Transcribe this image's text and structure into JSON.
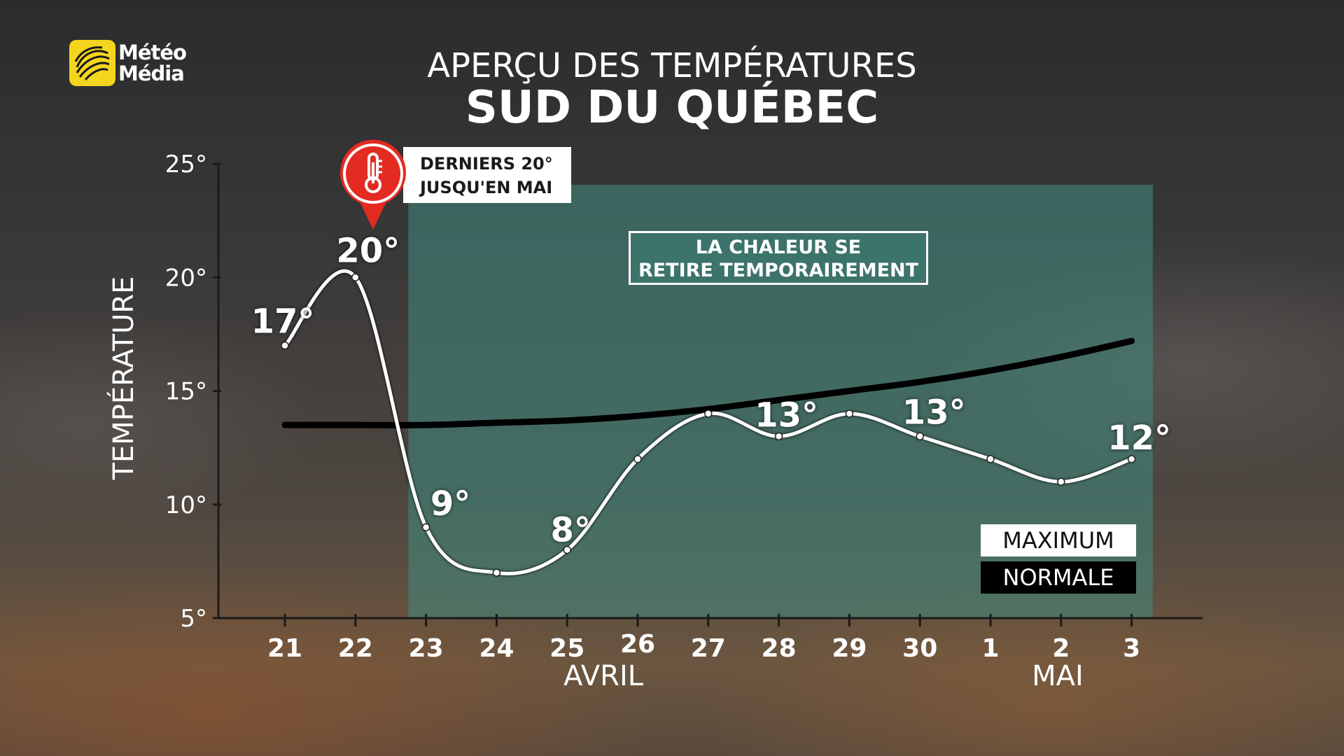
{
  "branding": {
    "logo_line1": "Météo",
    "logo_line2": "Média"
  },
  "header": {
    "title": "APERÇU DES TEMPÉRATURES",
    "subtitle": "SUD DU QUÉBEC"
  },
  "callout": {
    "line1": "DERNIERS 20°",
    "line2": "JUSQU'EN MAI"
  },
  "highlight": {
    "line1": "LA CHALEUR SE",
    "line2": "RETIRE TEMPORAIREMENT"
  },
  "legend": {
    "maximum": "MAXIMUM",
    "normale": "NORMALE"
  },
  "months": {
    "april": "AVRIL",
    "may": "MAI"
  },
  "colors": {
    "maximum_line": "#ffffff",
    "normal_line": "#000000",
    "callout_pin": "#e32b22",
    "highlight_zone": "#3f8c80",
    "logo_yellow": "#f4d51d"
  },
  "chart_data": {
    "type": "line",
    "ylabel": "TEMPÉRATURE",
    "ylim": [
      5,
      25
    ],
    "y_ticks": [
      5,
      10,
      15,
      20,
      25
    ],
    "y_tick_labels": [
      "5°",
      "10°",
      "15°",
      "20°",
      "25°"
    ],
    "categories": [
      "21",
      "22",
      "23",
      "24",
      "25",
      "26",
      "27",
      "28",
      "29",
      "30",
      "1",
      "2",
      "3"
    ],
    "series": [
      {
        "name": "MAXIMUM",
        "values": [
          17,
          20,
          9,
          7,
          8,
          12,
          14,
          13,
          14,
          13,
          12,
          11,
          12
        ]
      },
      {
        "name": "NORMALE",
        "values": [
          13.5,
          13.5,
          13.5,
          13.6,
          13.7,
          13.9,
          14.2,
          14.6,
          15.0,
          15.4,
          15.9,
          16.5,
          17.2
        ]
      }
    ],
    "data_labels": [
      {
        "index": 0,
        "text": "17°"
      },
      {
        "index": 1,
        "text": "20°"
      },
      {
        "index": 2,
        "text": "9°"
      },
      {
        "index": 4,
        "text": "8°"
      },
      {
        "index": 7,
        "text": "13°"
      },
      {
        "index": 9,
        "text": "13°"
      },
      {
        "index": 12,
        "text": "12°"
      }
    ],
    "highlight_range": [
      1.75,
      12.3
    ],
    "legend_position": "bottom-right"
  }
}
